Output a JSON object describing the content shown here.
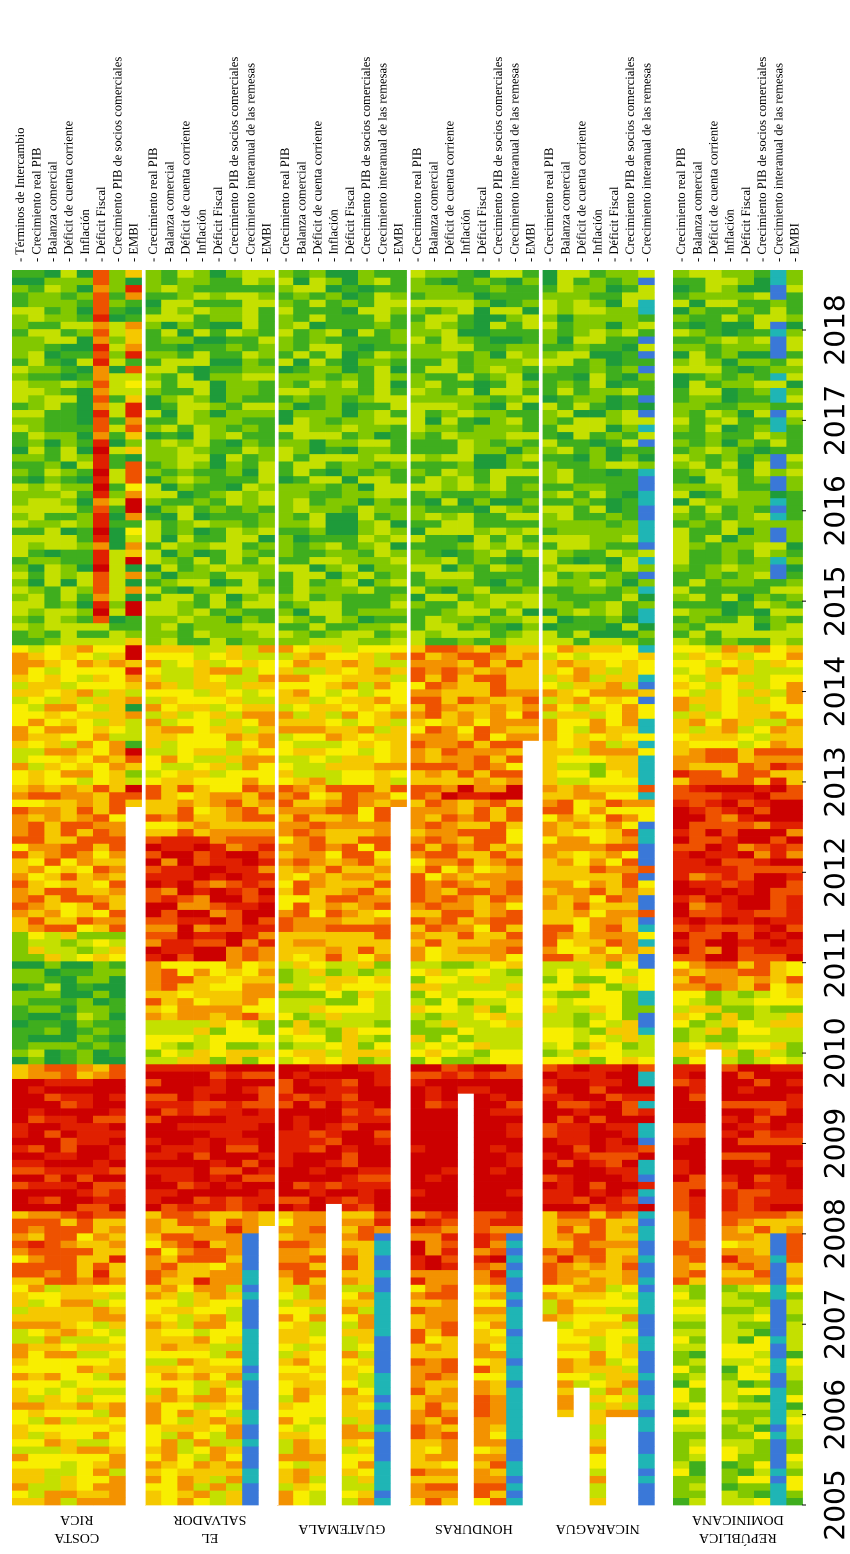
{
  "chart_data": {
    "type": "heatmap",
    "orientation": "rotated-90-clockwise",
    "color_scale": [
      "#cc0000",
      "#e02000",
      "#ee5200",
      "#f39200",
      "#f5c800",
      "#f8ee00",
      "#c4e000",
      "#82c800",
      "#3fae1e",
      "#1e9b3a"
    ],
    "color_scale_low": [
      "#1fb5b5",
      "#3a78d8"
    ],
    "years": [
      "2005",
      "2006",
      "2007",
      "2008",
      "2009",
      "2010",
      "2011",
      "2012",
      "2013",
      "2014",
      "2015",
      "2016",
      "2017",
      "2018"
    ],
    "period": {
      "start": "2005-01",
      "end": "2018-12",
      "frequency": "monthly"
    },
    "groups": [
      {
        "name_lines": [
          "COSTA",
          "RICA"
        ],
        "indicators": [
          "Términos de Intercambio",
          "Crecimiento real PIB",
          "Balanza comercial",
          "Déficit de cuenta corriente",
          "Inflación",
          "Déficit Fiscal",
          "Crecimiento PIB de socios comerciales",
          "EMBI"
        ],
        "series_start": [
          "2005-01",
          "2005-01",
          "2005-01",
          "2005-01",
          "2005-01",
          "2005-01",
          "2005-01",
          "2012-12"
        ],
        "pattern": "yellow-orange 2005–2007, red 2008–2010, green 2010–2011, yellow-orange 2012–2014, green 2015–2018 with red in fiscal rows"
      },
      {
        "name_lines": [
          "EL",
          "SALVADOR"
        ],
        "indicators": [
          "Crecimiento real PIB",
          "Balanza comercial",
          "Déficit de cuenta corriente",
          "Inflación",
          "Déficit Fiscal",
          "Crecimiento PIB de socios comerciales",
          "Crecimiento interanual de las remesas",
          "EMBI"
        ],
        "series_start": [
          "2005-01",
          "2005-01",
          "2005-01",
          "2005-01",
          "2005-01",
          "2005-01",
          "2005-01",
          "2008-03"
        ],
        "pattern": "mixed 2005–2007, red 2008–2009, red-orange 2011–2012, green 2016–2018, remesas blue 2005–2007"
      },
      {
        "name_lines": [
          "GUATEMALA"
        ],
        "indicators": [
          "Crecimiento real PIB",
          "Balanza comercial",
          "Déficit de cuenta corriente",
          "Inflación",
          "Déficit Fiscal",
          "Crecimiento PIB de socios comerciales",
          "Crecimiento interanual de las remesas",
          "EMBI"
        ],
        "series_start": [
          "2005-01",
          "2005-01",
          "2005-01",
          "2008-06",
          "2005-01",
          "2005-01",
          "2005-01",
          "2012-12"
        ],
        "pattern": "yellow-orange 2005–2007, red 2008–2010, red-orange 2011–2013, green 2015–2018, remesas blue 2005–2008"
      },
      {
        "name_lines": [
          "HONDURAS"
        ],
        "indicators": [
          "Crecimiento real PIB",
          "Balanza comercial",
          "Déficit de cuenta corriente",
          "Inflación",
          "Déficit Fiscal",
          "Crecimiento PIB de socios comerciales",
          "Crecimiento interanual de las remesas",
          "EMBI"
        ],
        "series_start": [
          "2005-01",
          "2005-01",
          "2005-01",
          "2009-09",
          "2005-01",
          "2005-01",
          "2005-01",
          "2013-09"
        ],
        "pattern": "orange-red 2005–2009, yellow 2010–2012, red-orange 2013–2014, green 2016–2018"
      },
      {
        "name_lines": [
          "NICARAGUA"
        ],
        "indicators": [
          "Crecimiento real PIB",
          "Balanza comercial",
          "Déficit de cuenta corriente",
          "Inflación",
          "Déficit Fiscal",
          "Crecimiento PIB de socios comerciales",
          "Crecimiento interanual de las remesas"
        ],
        "series_start": [
          "2007-02",
          "2006-01",
          "2006-05",
          "2005-01",
          "2006-01",
          "2006-01",
          "2005-01"
        ],
        "pattern": "red 2008–2010, orange-yellow 2011–2013, green 2015–2018, remesas cyan-blue"
      },
      {
        "name_lines": [
          "REPÚBLICA",
          "DOMINICANA"
        ],
        "indicators": [
          "Crecimiento real PIB",
          "Balanza comercial",
          "Déficit de cuenta corriente",
          "Inflación",
          "Déficit Fiscal",
          "Crecimiento PIB de socios comerciales",
          "Crecimiento interanual de las remesas",
          "EMBI"
        ],
        "series_start": [
          "2005-01",
          "2005-01",
          "2010-03",
          "2005-01",
          "2005-01",
          "2005-01",
          "2005-01",
          "2005-01"
        ],
        "pattern": "green-yellow 2005–2007, red 2009–2010, red 2011–2013, green-blue 2015–2018"
      }
    ]
  }
}
